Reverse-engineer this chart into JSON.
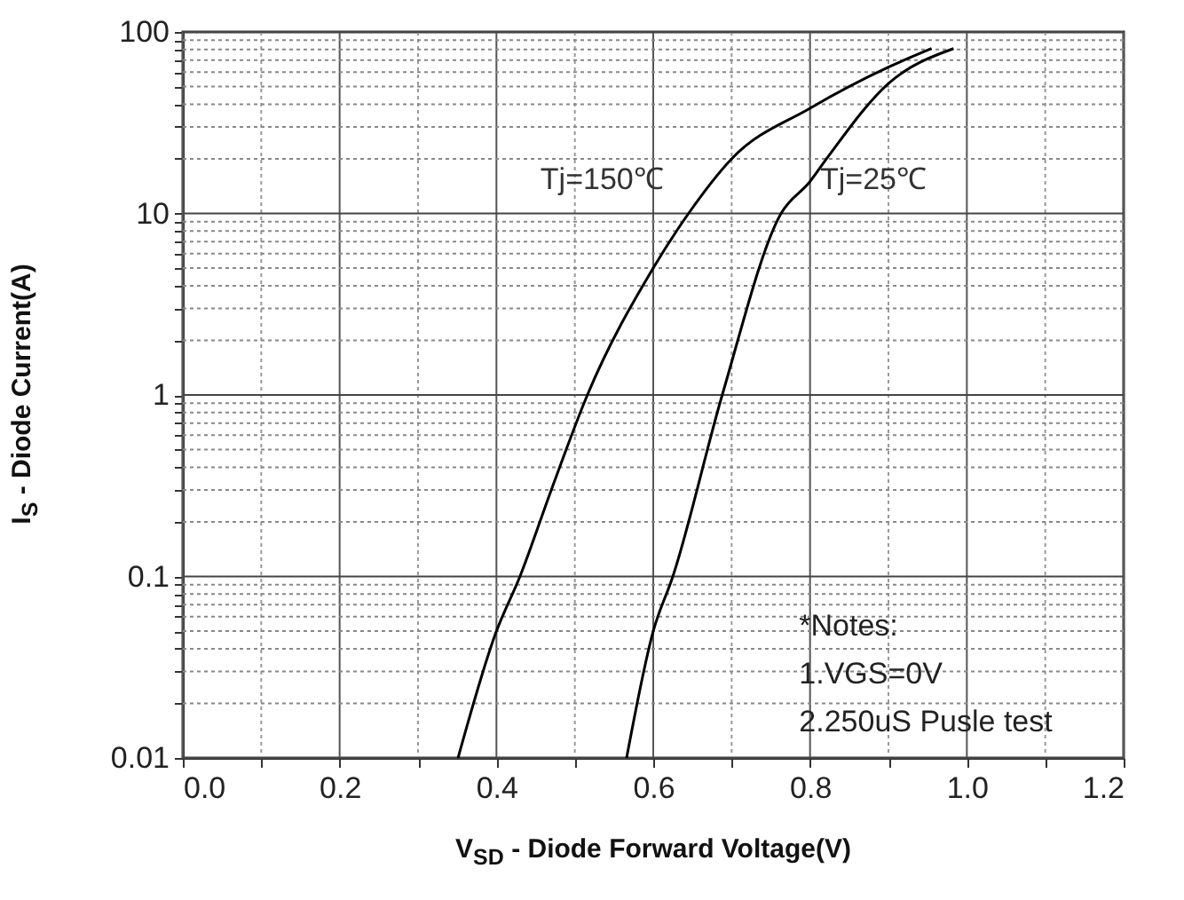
{
  "chart_data": {
    "type": "line",
    "xlabel": "V$_{SD}$ - Diode Forward Voltage(V)",
    "ylabel": "I$_{S}$ - Diode Current(A)",
    "log": "y",
    "grid": true,
    "line_style": "solid",
    "marker": "none",
    "xlim": [
      0,
      1.2
    ],
    "xticks": [
      {
        "value": 0,
        "label": "0.0"
      },
      {
        "value": 0.1,
        "label": null
      },
      {
        "value": 0.2,
        "label": "0.2"
      },
      {
        "value": 0.3,
        "label": null
      },
      {
        "value": 0.4,
        "label": "0.4"
      },
      {
        "value": 0.5,
        "label": null
      },
      {
        "value": 0.6,
        "label": "0.6"
      },
      {
        "value": 0.7,
        "label": null
      },
      {
        "value": 0.8,
        "label": "0.8"
      },
      {
        "value": 0.9,
        "label": null
      },
      {
        "value": 1,
        "label": "1.0"
      },
      {
        "value": 1.1,
        "label": null
      },
      {
        "value": 1.2,
        "label": "1.2"
      }
    ],
    "ylim": [
      0.01,
      100
    ],
    "yticks": [
      0.01,
      {
        "value": 0.02,
        "label": null
      },
      {
        "value": 0.03,
        "label": null
      },
      {
        "value": 0.04,
        "label": null
      },
      {
        "value": 0.05,
        "label": null
      },
      {
        "value": 0.06,
        "label": null
      },
      {
        "value": 0.07,
        "label": null
      },
      {
        "value": 0.08,
        "label": null
      },
      {
        "value": 0.09,
        "label": null
      },
      0.1,
      {
        "value": 0.2,
        "label": null
      },
      {
        "value": 0.3,
        "label": null
      },
      {
        "value": 0.4,
        "label": null
      },
      {
        "value": 0.5,
        "label": null
      },
      {
        "value": 0.6,
        "label": null
      },
      {
        "value": 0.7,
        "label": null
      },
      {
        "value": 0.8,
        "label": null
      },
      {
        "value": 0.9,
        "label": null
      },
      1,
      {
        "value": 2,
        "label": null
      },
      {
        "value": 3,
        "label": null
      },
      {
        "value": 4,
        "label": null
      },
      {
        "value": 5,
        "label": null
      },
      {
        "value": 6,
        "label": null
      },
      {
        "value": 7,
        "label": null
      },
      {
        "value": 8,
        "label": null
      },
      {
        "value": 9,
        "label": null
      },
      10,
      {
        "value": 20,
        "label": null
      },
      {
        "value": 30,
        "label": null
      },
      {
        "value": 40,
        "label": null
      },
      {
        "value": 50,
        "label": null
      },
      {
        "value": 60,
        "label": null
      },
      {
        "value": 70,
        "label": null
      },
      {
        "value": 80,
        "label": null
      },
      {
        "value": 90,
        "label": null
      },
      100
    ],
    "series": [
      {
        "name": "Tj=150℃",
        "color": "#000000",
        "x": [
          0.351,
          0.4,
          0.43,
          0.47,
          0.516,
          0.6,
          0.645,
          0.7,
          0.8,
          0.9,
          0.955
        ],
        "values": [
          0.01,
          0.05,
          0.1,
          0.3,
          1,
          5,
          10,
          20,
          38,
          64,
          81
        ]
      },
      {
        "name": "Tj=25℃",
        "color": "#000000",
        "x": [
          0.566,
          0.6,
          0.625,
          0.688,
          0.763,
          0.8,
          0.821,
          0.9,
          0.983
        ],
        "values": [
          0.01,
          0.05,
          0.1,
          1,
          10,
          15,
          20,
          52,
          81
        ]
      }
    ],
    "annotations": [
      "*Notes:",
      "1.VGS=0V",
      "2.250uS Pusle test"
    ]
  }
}
